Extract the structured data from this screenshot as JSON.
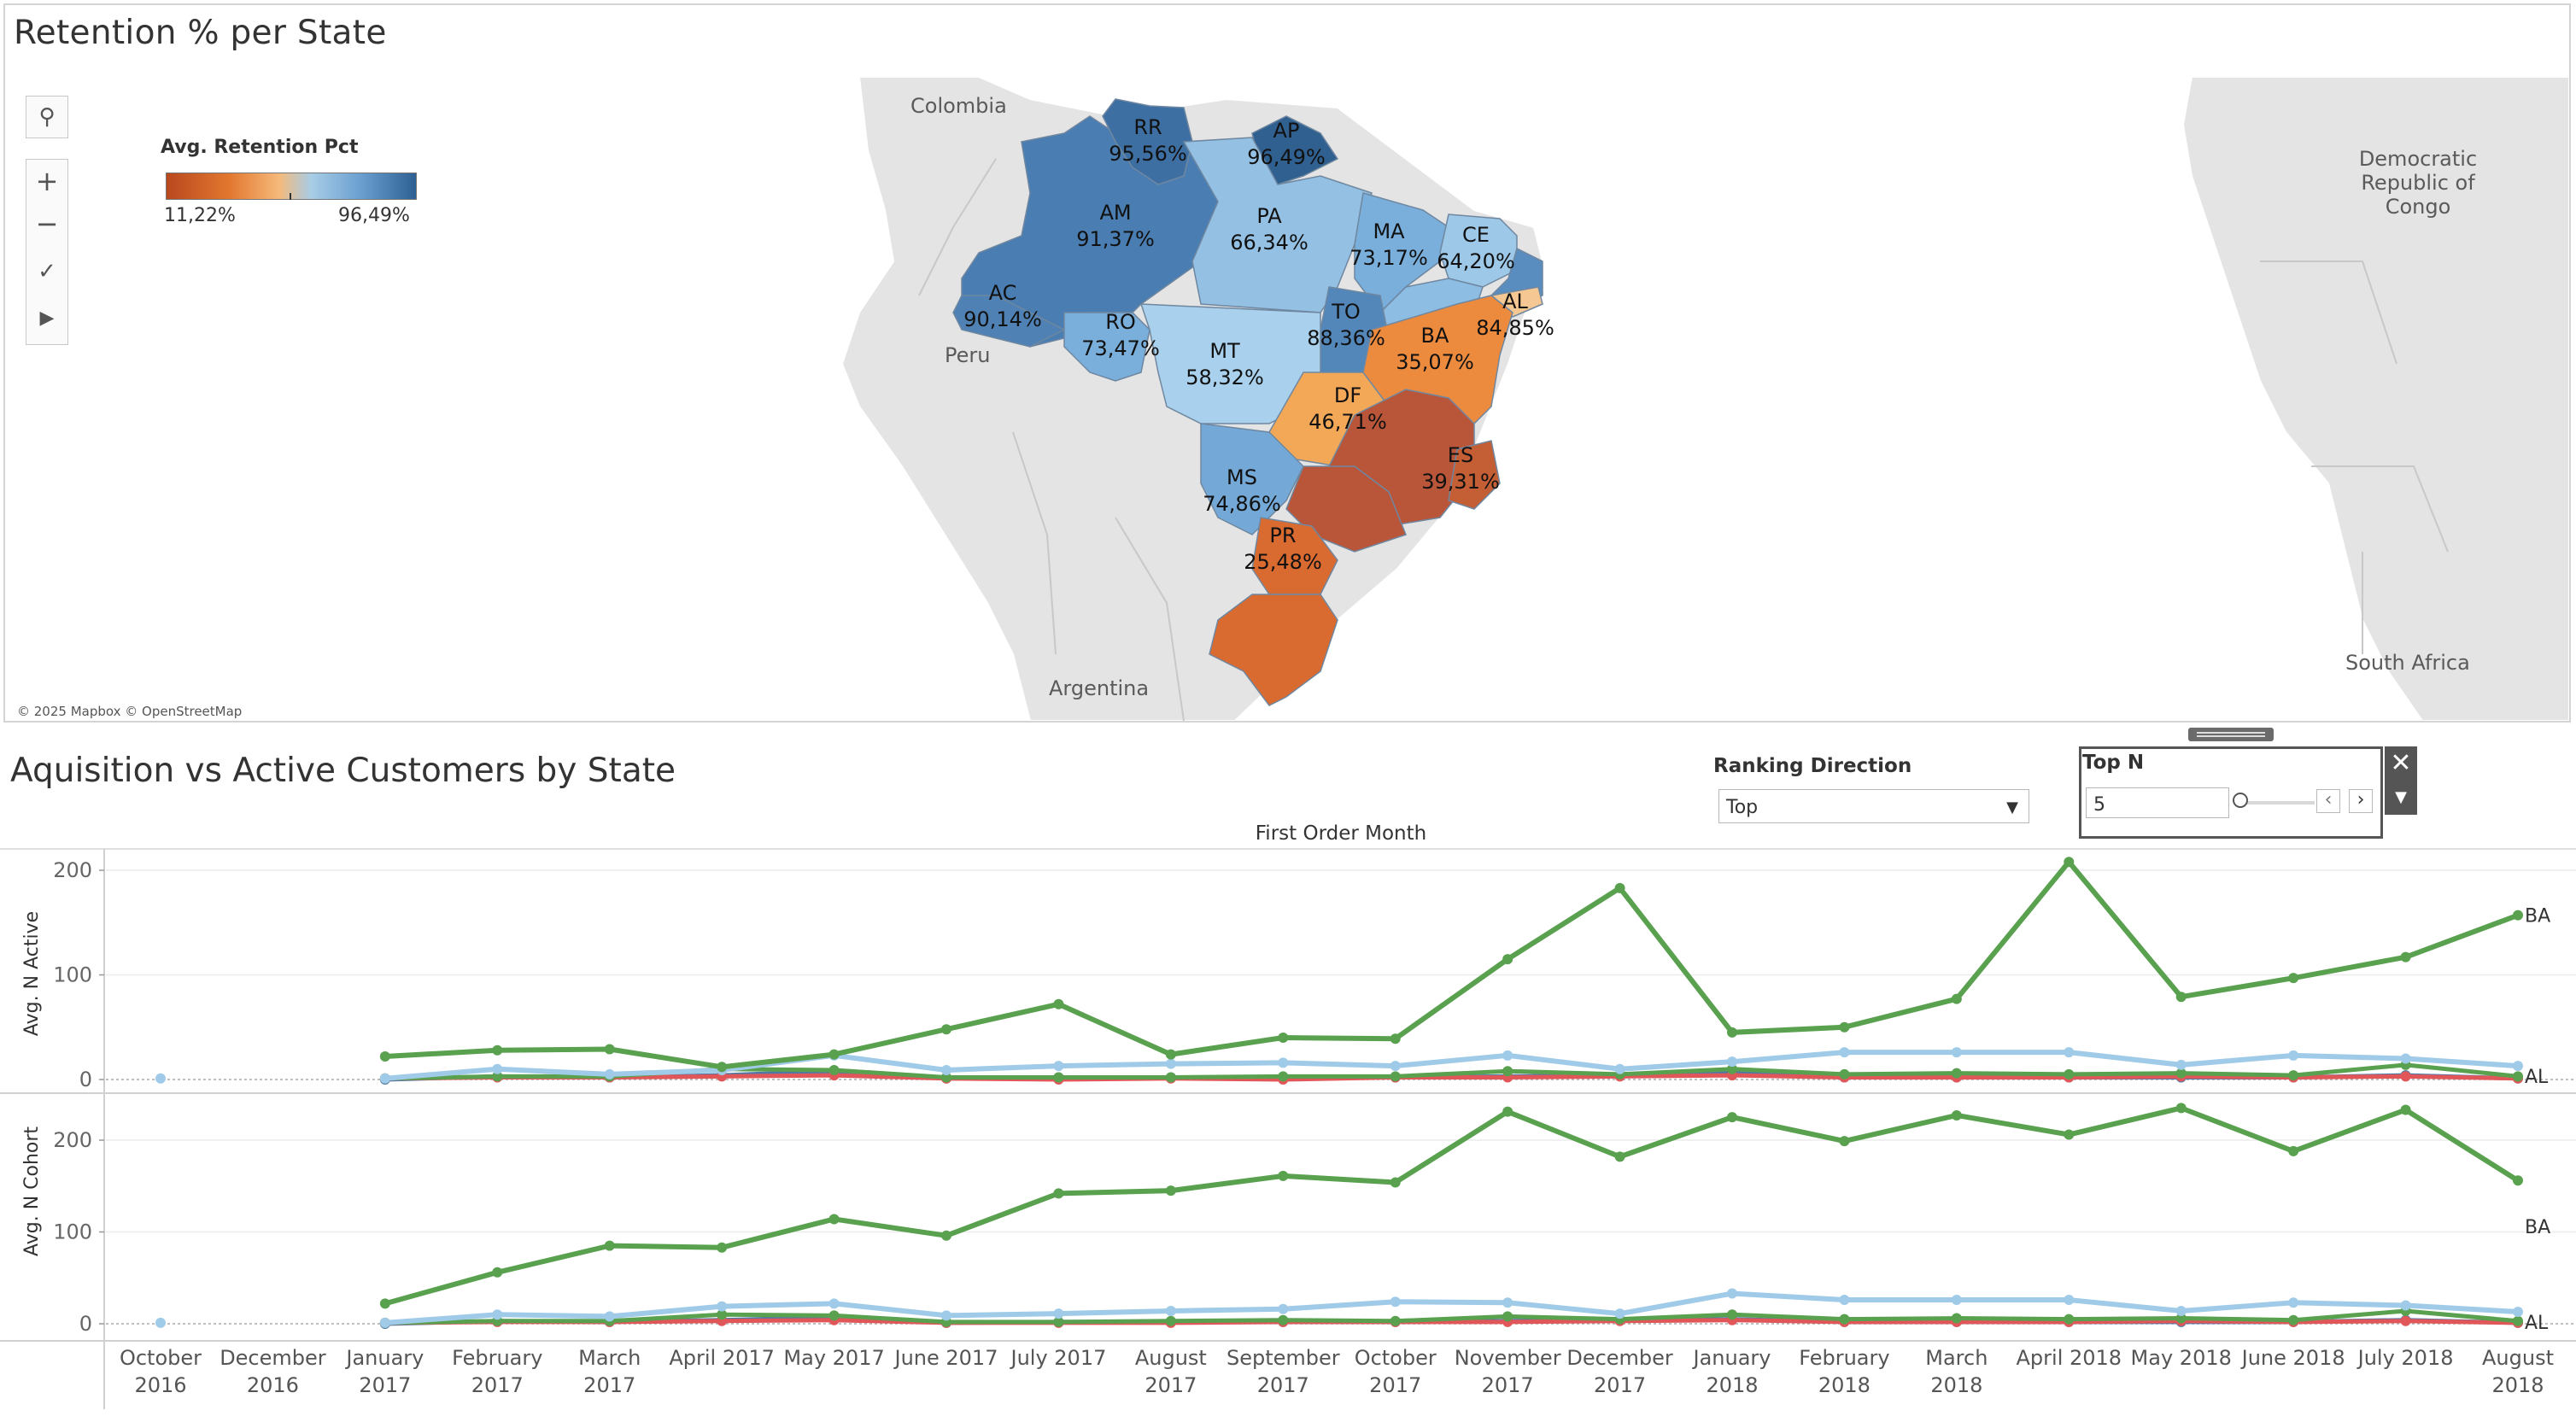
{
  "map": {
    "title": "Retention % per State",
    "legend": {
      "title": "Avg. Retention Pct",
      "min_label": "11,22%",
      "max_label": "96,49%"
    },
    "attribution": "© 2025 Mapbox © OpenStreetMap",
    "geo_labels": [
      "Colombia",
      "Peru",
      "Argentina",
      "Democratic Republic of Congo",
      "South Africa"
    ],
    "states": [
      {
        "code": "RR",
        "pct": "95,56%",
        "color": "#3e6fa3"
      },
      {
        "code": "AP",
        "pct": "96,49%",
        "color": "#2f6090"
      },
      {
        "code": "AM",
        "pct": "91,37%",
        "color": "#4a7db1"
      },
      {
        "code": "PA",
        "pct": "66,34%",
        "color": "#93c0e3"
      },
      {
        "code": "MA",
        "pct": "73,17%",
        "color": "#7aaedb"
      },
      {
        "code": "CE",
        "pct": "64,20%",
        "color": "#9ec8e8"
      },
      {
        "code": "AC",
        "pct": "90,14%",
        "color": "#4f81b4"
      },
      {
        "code": "RO",
        "pct": "73,47%",
        "color": "#7aaedb"
      },
      {
        "code": "TO",
        "pct": "88,36%",
        "color": "#5387ba"
      },
      {
        "code": "AL",
        "pct": "84,85%",
        "color": "#5a8dbf"
      },
      {
        "code": "BA",
        "pct": "35,07%",
        "color": "#ec8a3e"
      },
      {
        "code": "MT",
        "pct": "58,32%",
        "color": "#a9d0ec"
      },
      {
        "code": "DF",
        "pct": "46,71%",
        "color": "#f3a857"
      },
      {
        "code": "ES",
        "pct": "39,31%",
        "color": "#e78236"
      },
      {
        "code": "MS",
        "pct": "74,86%",
        "color": "#74a8d6"
      },
      {
        "code": "PR",
        "pct": "25,48%",
        "color": "#d96a30"
      }
    ]
  },
  "map_tools": {
    "search": "search-icon",
    "zoom_in": "+",
    "zoom_out": "−",
    "pin": "pin-icon",
    "play": "▶"
  },
  "controls": {
    "chart_title": "Aquisition vs Active Customers by State",
    "ranking_label": "Ranking Direction",
    "ranking_value": "Top",
    "topn_label": "Top N",
    "topn_value": "5"
  },
  "chart_data": [
    {
      "type": "line",
      "title": "First Order Month",
      "ylabel": "Avg. N Active",
      "ylim": [
        0,
        230
      ],
      "yticks": [
        "200",
        "100",
        "0"
      ],
      "x": [
        "October 2016",
        "December 2016",
        "January 2017",
        "February 2017",
        "March 2017",
        "April 2017",
        "May 2017",
        "June 2017",
        "July 2017",
        "August 2017",
        "September 2017",
        "October 2017",
        "November 2017",
        "December 2017",
        "January 2018",
        "February 2018",
        "March 2018",
        "April 2018",
        "May 2018",
        "June 2018",
        "July 2018",
        "August 2018"
      ],
      "series": [
        {
          "name": "BA",
          "color": "#59a14f",
          "values": [
            null,
            null,
            22,
            28,
            29,
            12,
            24,
            48,
            72,
            24,
            40,
            39,
            115,
            183,
            45,
            50,
            77,
            208,
            79,
            97,
            117,
            157
          ]
        },
        {
          "name": "AL",
          "color": "#a0cbe8",
          "values": [
            1,
            null,
            1,
            10,
            5,
            9,
            23,
            9,
            13,
            15,
            16,
            13,
            23,
            10,
            17,
            26,
            26,
            26,
            14,
            23,
            20,
            13
          ]
        },
        {
          "name": "",
          "color": "#59a14f",
          "values": [
            null,
            null,
            1,
            3,
            3,
            10,
            9,
            2,
            2,
            2,
            3,
            3,
            8,
            5,
            10,
            5,
            6,
            5,
            6,
            4,
            14,
            3
          ]
        },
        {
          "name": "",
          "color": "#e15759",
          "values": [
            null,
            null,
            1,
            2,
            2,
            3,
            4,
            1,
            0,
            1,
            0,
            2,
            2,
            3,
            4,
            2,
            2,
            2,
            3,
            2,
            3,
            1
          ]
        },
        {
          "name": "",
          "color": "#4e79a7",
          "values": [
            null,
            null,
            0,
            3,
            2,
            4,
            8,
            1,
            2,
            2,
            2,
            2,
            3,
            4,
            6,
            2,
            2,
            2,
            2,
            2,
            4,
            1
          ]
        }
      ]
    },
    {
      "type": "line",
      "ylabel": "Avg. N Cohort",
      "ylim": [
        0,
        240
      ],
      "yticks": [
        "200",
        "100",
        "0"
      ],
      "x": [
        "October 2016",
        "December 2016",
        "January 2017",
        "February 2017",
        "March 2017",
        "April 2017",
        "May 2017",
        "June 2017",
        "July 2017",
        "August 2017",
        "September 2017",
        "October 2017",
        "November 2017",
        "December 2017",
        "January 2018",
        "February 2018",
        "March 2018",
        "April 2018",
        "May 2018",
        "June 2018",
        "July 2018",
        "August 2018"
      ],
      "series": [
        {
          "name": "BA",
          "color": "#59a14f",
          "values": [
            null,
            null,
            22,
            56,
            85,
            83,
            114,
            96,
            142,
            145,
            161,
            154,
            231,
            182,
            225,
            199,
            227,
            206,
            235,
            188,
            233,
            156
          ]
        },
        {
          "name": "AL",
          "color": "#a0cbe8",
          "values": [
            1,
            null,
            1,
            10,
            8,
            19,
            22,
            9,
            11,
            14,
            16,
            24,
            23,
            11,
            33,
            26,
            26,
            26,
            14,
            23,
            20,
            13
          ]
        },
        {
          "name": "",
          "color": "#59a14f",
          "values": [
            null,
            null,
            1,
            3,
            3,
            10,
            9,
            2,
            2,
            3,
            4,
            3,
            8,
            5,
            10,
            5,
            6,
            5,
            6,
            4,
            14,
            3
          ]
        },
        {
          "name": "",
          "color": "#e15759",
          "values": [
            null,
            null,
            1,
            2,
            2,
            3,
            4,
            1,
            1,
            1,
            2,
            2,
            2,
            3,
            4,
            2,
            2,
            2,
            3,
            2,
            3,
            1
          ]
        },
        {
          "name": "",
          "color": "#4e79a7",
          "values": [
            null,
            null,
            0,
            3,
            2,
            4,
            7,
            1,
            2,
            2,
            2,
            2,
            3,
            4,
            5,
            2,
            2,
            2,
            2,
            2,
            4,
            1
          ]
        }
      ]
    }
  ],
  "end_labels": {
    "top_ba": "BA",
    "top_al": "AL",
    "bottom_ba": "BA",
    "bottom_al": "AL"
  }
}
